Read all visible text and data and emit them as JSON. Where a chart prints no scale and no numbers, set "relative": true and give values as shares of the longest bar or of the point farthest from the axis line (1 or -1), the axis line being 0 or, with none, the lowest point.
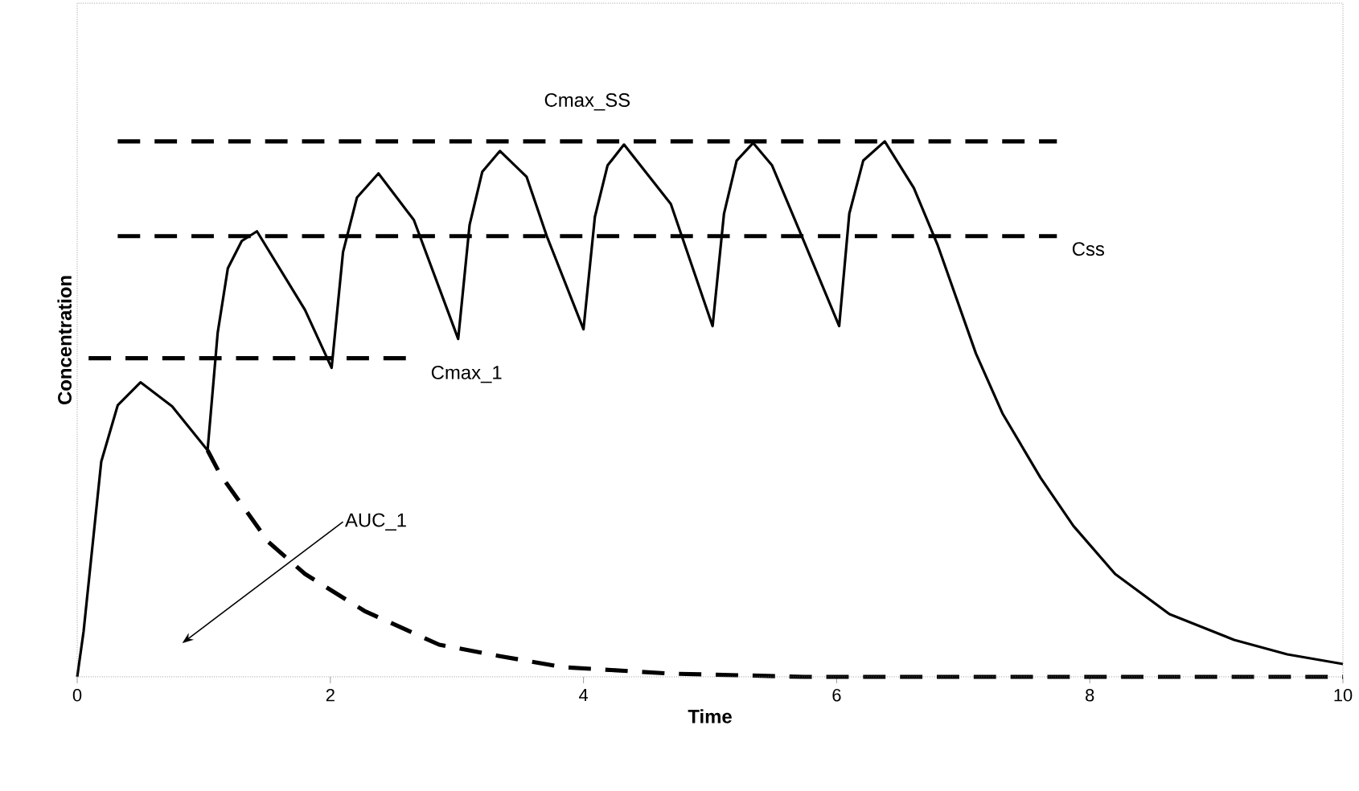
{
  "chart_data": {
    "type": "line",
    "relative": true,
    "xlabel": "Time",
    "ylabel": "Concentration",
    "xlim": [
      0,
      10
    ],
    "xticks": [
      0,
      2,
      4,
      6,
      8,
      10
    ],
    "marker": "none",
    "annotations": [
      "AUC_1"
    ],
    "series": [
      {
        "color": "#000000",
        "line_style": "solid",
        "x": [
          0,
          0.05,
          0.19,
          0.32,
          0.5,
          0.75,
          1.03,
          1.11,
          1.19,
          1.3,
          1.42,
          1.8,
          2.01,
          2.1,
          2.21,
          2.38,
          2.66,
          3.01,
          3.1,
          3.2,
          3.34,
          3.55,
          3.71,
          4.0,
          4.09,
          4.19,
          4.32,
          4.69,
          5.02,
          5.11,
          5.21,
          5.34,
          5.49,
          5.74,
          6.02,
          6.1,
          6.21,
          6.38,
          6.61,
          6.8,
          7.1,
          7.31,
          7.61,
          7.87,
          8.2,
          8.63,
          9.14,
          9.56,
          10
        ],
        "values": [
          0,
          0.084,
          0.402,
          0.507,
          0.55,
          0.505,
          0.423,
          0.643,
          0.763,
          0.814,
          0.832,
          0.685,
          0.577,
          0.793,
          0.895,
          0.94,
          0.853,
          0.631,
          0.844,
          0.943,
          0.982,
          0.934,
          0.823,
          0.649,
          0.859,
          0.955,
          0.994,
          0.883,
          0.655,
          0.865,
          0.964,
          0.997,
          0.955,
          0.814,
          0.655,
          0.865,
          0.964,
          1.0,
          0.913,
          0.805,
          0.604,
          0.492,
          0.372,
          0.282,
          0.192,
          0.117,
          0.069,
          0.042,
          0.024
        ]
      },
      {
        "color": "#000000",
        "line_style": "dashed",
        "x": [
          1.03,
          1.13,
          1.51,
          1.8,
          2.27,
          2.86,
          3.33,
          3.84,
          4.69,
          5.74,
          10
        ],
        "values": [
          0.423,
          0.378,
          0.252,
          0.192,
          0.123,
          0.06,
          0.039,
          0.018,
          0.006,
          0,
          0
        ]
      },
      {
        "name": "Cmax_SS",
        "color": "#000000",
        "line_style": "dashed",
        "x": [
          0.32,
          7.74
        ],
        "values": [
          1.0,
          1.0
        ]
      },
      {
        "name": "Css",
        "color": "#000000",
        "line_style": "dashed",
        "x": [
          0.32,
          7.74
        ],
        "values": [
          0.823,
          0.823
        ]
      },
      {
        "name": "Cmax_1",
        "color": "#000000",
        "line_style": "dashed",
        "x": [
          0.09,
          2.6
        ],
        "values": [
          0.595,
          0.595
        ]
      }
    ]
  }
}
